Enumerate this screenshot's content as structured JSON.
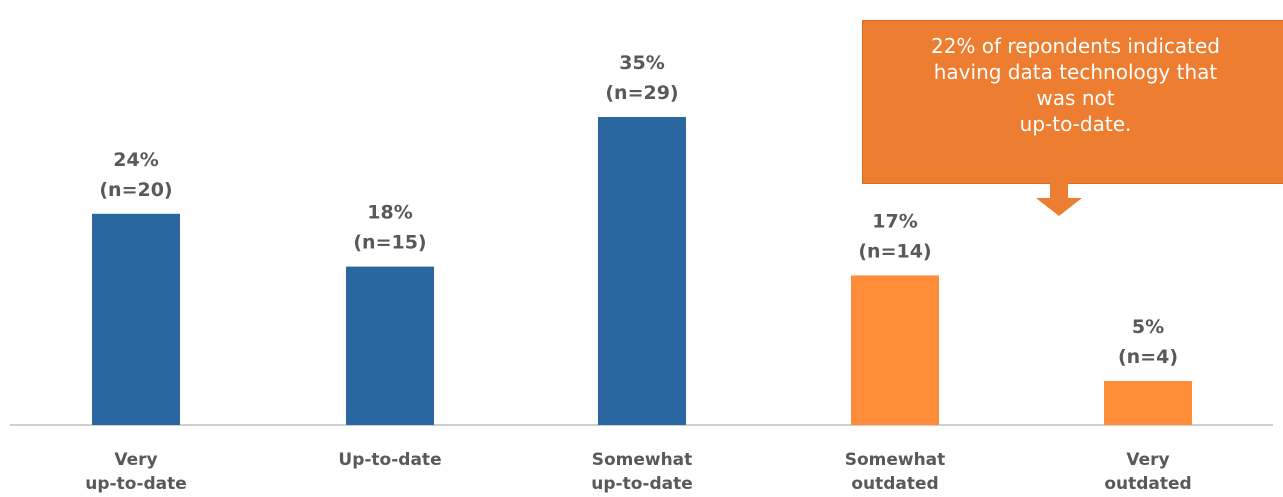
{
  "chart_data": {
    "type": "bar",
    "title": "",
    "xlabel": "",
    "ylabel": "",
    "ylim": [
      0,
      40
    ],
    "grid": false,
    "categories": [
      [
        "Very",
        "up-to-date"
      ],
      [
        "Up-to-date"
      ],
      [
        "Somewhat",
        "up-to-date"
      ],
      [
        "Somewhat",
        "outdated"
      ],
      [
        "Very",
        "outdated"
      ]
    ],
    "values": [
      24,
      18,
      35,
      17,
      5
    ],
    "percent_labels": [
      "24%",
      "18%",
      "35%",
      "17%",
      "5%"
    ],
    "n_labels": [
      "(n=20)",
      "(n=15)",
      "(n=29)",
      "(n=14)",
      "(n=4)"
    ],
    "colors": [
      "#2A67A0",
      "#2A67A0",
      "#2A67A0",
      "#FF8C38",
      "#FF8C38"
    ],
    "annotation": {
      "lines": [
        "22% of repondents indicated",
        "having data technology that",
        "was not",
        "up-to-date."
      ],
      "color": "#ED7D31"
    }
  }
}
